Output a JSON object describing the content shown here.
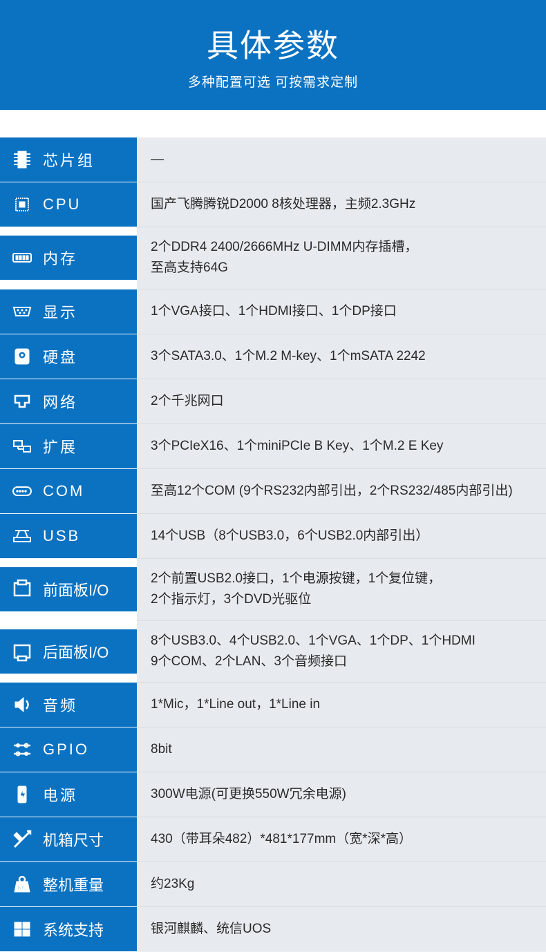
{
  "header": {
    "title": "具体参数",
    "subtitle": "多种配置可选 可按需求定制"
  },
  "rows": [
    {
      "label": "芯片组",
      "value": "—",
      "icon": "chip",
      "tight": false
    },
    {
      "label": "CPU",
      "value": "国产飞腾腾锐D2000 8核处理器，主频2.3GHz",
      "icon": "cpu",
      "tight": false
    },
    {
      "label": "内存",
      "value": "2个DDR4 2400/2666MHz U-DIMM内存插槽，\n至高支持64G",
      "icon": "ram",
      "tight": false
    },
    {
      "label": "显示",
      "value": "1个VGA接口、1个HDMI接口、1个DP接口",
      "icon": "vga",
      "tight": false
    },
    {
      "label": "硬盘",
      "value": "3个SATA3.0、1个M.2 M-key、1个mSATA 2242",
      "icon": "hdd",
      "tight": false
    },
    {
      "label": "网络",
      "value": "2个千兆网口",
      "icon": "net",
      "tight": false
    },
    {
      "label": "扩展",
      "value": "3个PCIeX16、1个miniPCIe B Key、1个M.2 E Key",
      "icon": "exp",
      "tight": false
    },
    {
      "label": "COM",
      "value": "至高12个COM (9个RS232内部引出，2个RS232/485内部引出)",
      "icon": "com",
      "tight": false
    },
    {
      "label": "USB",
      "value": "14个USB（8个USB3.0，6个USB2.0内部引出）",
      "icon": "usb",
      "tight": false
    },
    {
      "label": "前面板I/O",
      "value": "2个前置USB2.0接口，1个电源按键，1个复位键，\n2个指示灯，3个DVD光驱位",
      "icon": "panel",
      "tight": true
    },
    {
      "label": "后面板I/O",
      "value": "8个USB3.0、4个USB2.0、1个VGA、1个DP、1个HDMI\n9个COM、2个LAN、3个音频接口",
      "icon": "panel2",
      "tight": true
    },
    {
      "label": "音频",
      "value": "1*Mic，1*Line out，1*Line in",
      "icon": "audio",
      "tight": false
    },
    {
      "label": "GPIO",
      "value": "8bit",
      "icon": "gpio",
      "tight": false
    },
    {
      "label": "电源",
      "value": "300W电源(可更换550W冗余电源)",
      "icon": "power",
      "tight": false
    },
    {
      "label": "机箱尺寸",
      "value": "430（带耳朵482）*481*177mm（宽*深*高）",
      "icon": "size",
      "tight": true
    },
    {
      "label": "整机重量",
      "value": "约23Kg",
      "icon": "weight",
      "tight": true
    },
    {
      "label": "系统支持",
      "value": "银河麒麟、统信UOS",
      "icon": "os",
      "tight": true
    }
  ],
  "colors": {
    "primary": "#0b72c2",
    "value_bg": "#e7ebef",
    "text": "#2a2a2a"
  }
}
